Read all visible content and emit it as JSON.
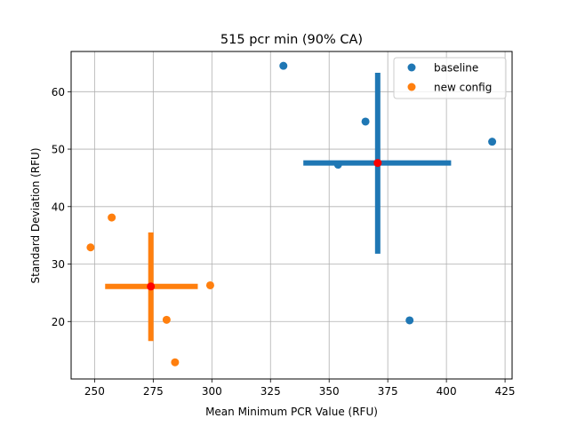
{
  "chart_data": {
    "type": "scatter",
    "title": "515 pcr min (90% CA)",
    "xlabel": "Mean Minimum PCR Value (RFU)",
    "ylabel": "Standard Deviation (RFU)",
    "xlim": [
      240,
      428
    ],
    "ylim": [
      10,
      67
    ],
    "xticks": [
      250,
      275,
      300,
      325,
      350,
      375,
      400,
      425
    ],
    "yticks": [
      20,
      30,
      40,
      50,
      60
    ],
    "grid": true,
    "legend_position": "top-right",
    "series": [
      {
        "name": "baseline",
        "color": "#1f77b4",
        "points": [
          {
            "x": 330.5,
            "y": 64.5
          },
          {
            "x": 365.5,
            "y": 54.8
          },
          {
            "x": 419.5,
            "y": 51.3
          },
          {
            "x": 353.8,
            "y": 47.3
          },
          {
            "x": 384.3,
            "y": 20.2
          }
        ],
        "mean": {
          "x": 370.7,
          "y": 47.6
        },
        "x_interval": [
          339.0,
          402.0
        ],
        "y_interval": [
          31.8,
          63.3
        ]
      },
      {
        "name": "new config",
        "color": "#ff7f0e",
        "points": [
          {
            "x": 248.3,
            "y": 32.9
          },
          {
            "x": 257.3,
            "y": 38.1
          },
          {
            "x": 299.3,
            "y": 26.3
          },
          {
            "x": 280.7,
            "y": 20.3
          },
          {
            "x": 284.3,
            "y": 12.9
          }
        ],
        "mean": {
          "x": 274.0,
          "y": 26.1
        },
        "x_interval": [
          254.5,
          294.0
        ],
        "y_interval": [
          16.6,
          35.5
        ]
      }
    ],
    "mean_marker_color": "#ff0000"
  }
}
